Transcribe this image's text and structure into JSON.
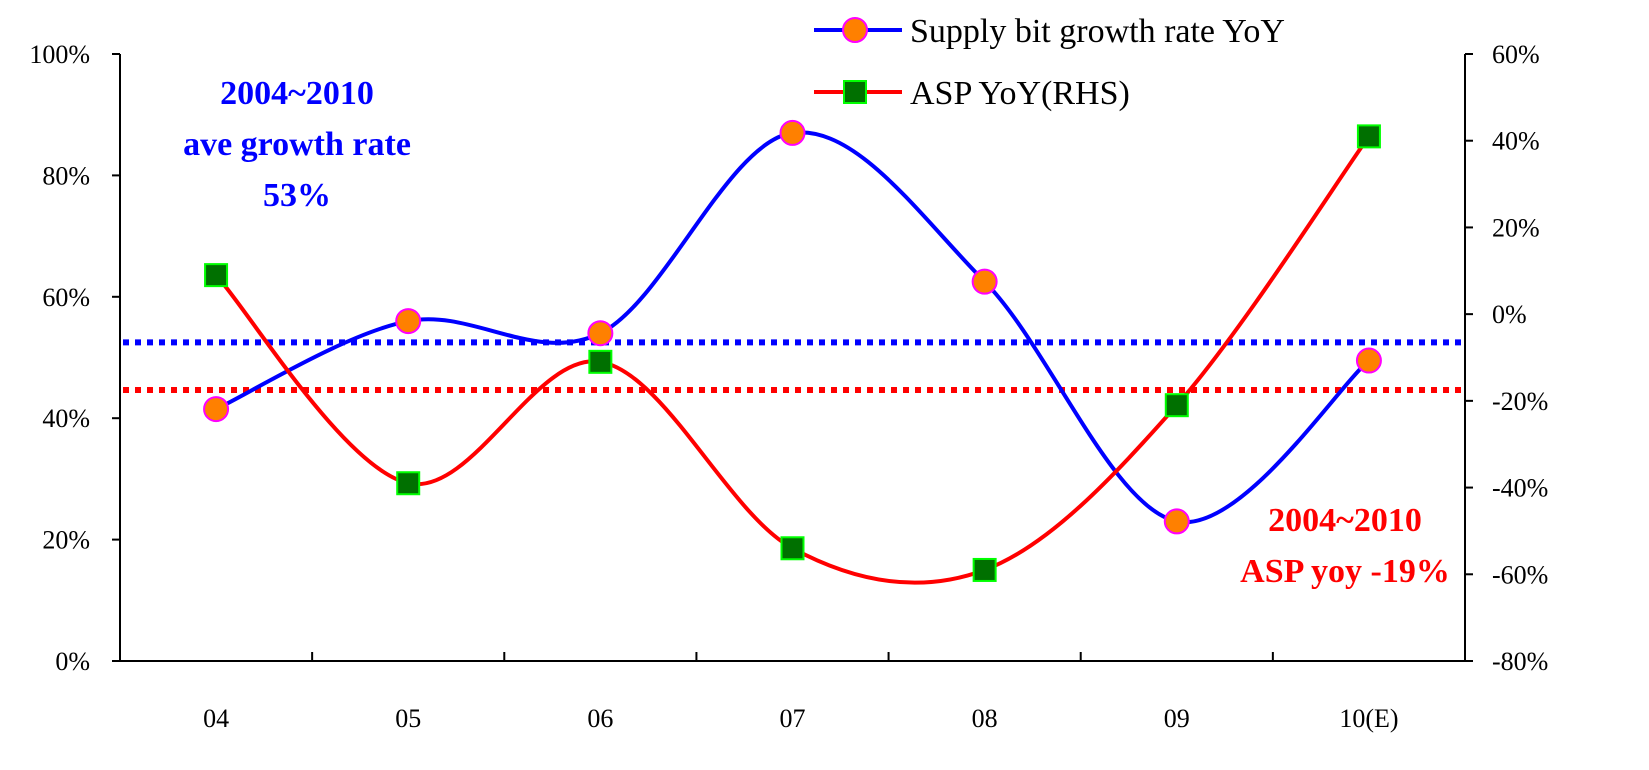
{
  "chart_data": {
    "type": "line",
    "categories": [
      "04",
      "05",
      "06",
      "07",
      "08",
      "09",
      "10(E)"
    ],
    "series": [
      {
        "name": "Supply bit growth rate YoY",
        "axis": "left",
        "color": "#0000ff",
        "marker": "circle",
        "marker_fill": "#ff8000",
        "marker_stroke": "#ff00ff",
        "values": [
          41.5,
          56,
          54,
          87,
          62.5,
          23,
          49.5
        ]
      },
      {
        "name": "ASP YoY(RHS)",
        "axis": "right",
        "color": "#ff0000",
        "marker": "square",
        "marker_fill": "#007000",
        "marker_stroke": "#00ff00",
        "values": [
          9,
          -39,
          -11,
          -54,
          -59,
          -21,
          41
        ]
      }
    ],
    "y_left": {
      "ticks": [
        "0%",
        "20%",
        "40%",
        "60%",
        "80%",
        "100%"
      ],
      "lim": [
        0,
        100
      ]
    },
    "y_right": {
      "ticks": [
        "-80%",
        "-60%",
        "-40%",
        "-20%",
        "0%",
        "20%",
        "40%",
        "60%"
      ],
      "lim": [
        -80,
        60
      ]
    },
    "reference_lines": [
      {
        "axis": "left",
        "value": 52.5,
        "color": "#0000ff",
        "style": "dotted"
      },
      {
        "axis": "right",
        "value": -17.5,
        "color": "#ff0000",
        "style": "dotted"
      }
    ],
    "annotations": [
      {
        "color": "#0000ff",
        "lines": [
          "2004~2010",
          "ave growth rate",
          "53%"
        ]
      },
      {
        "color": "#ff0000",
        "lines": [
          "2004~2010",
          "ASP yoy -19%"
        ]
      }
    ],
    "legend_position": "top-right",
    "grid": false
  }
}
